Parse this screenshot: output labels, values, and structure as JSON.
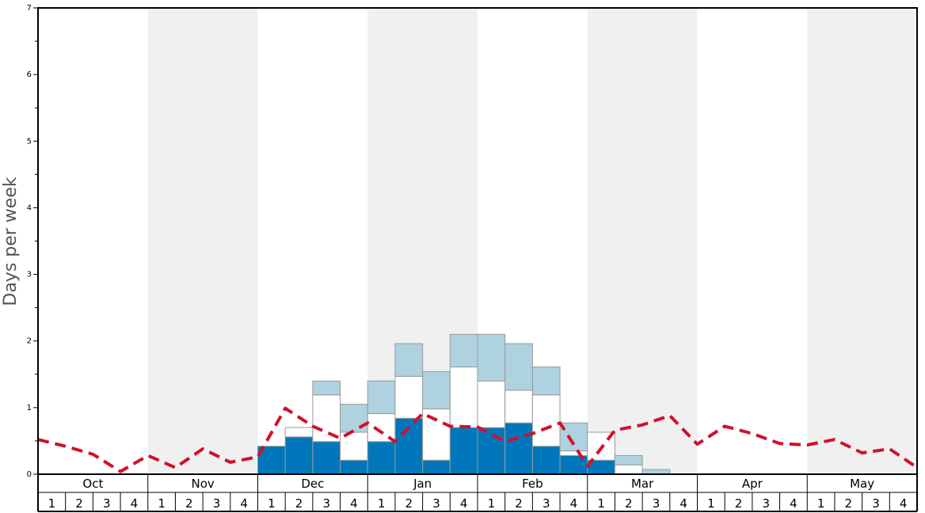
{
  "chart_data": {
    "type": "bar",
    "ylabel": "Days per week",
    "ylim": [
      0,
      7
    ],
    "yticks": [
      "0",
      "1",
      "2",
      "3",
      "4",
      "5",
      "6",
      "7"
    ],
    "months": [
      "Oct",
      "Nov",
      "Dec",
      "Jan",
      "Feb",
      "Mar",
      "Apr",
      "May"
    ],
    "weeks": [
      "1",
      "2",
      "3",
      "4"
    ],
    "month_band_colors": [
      "#ffffff",
      "#f0f0f0"
    ],
    "colors": {
      "bottom": "#0077bb",
      "middle": "#ffffff",
      "top": "#aed2df",
      "line": "#d0112b",
      "bar_stroke": "#999999"
    },
    "series": [
      {
        "key": "bottom",
        "values": [
          0,
          0,
          0,
          0,
          0,
          0,
          0,
          0,
          0.42,
          0.56,
          0.49,
          0.21,
          0.49,
          0.84,
          0.21,
          0.7,
          0.7,
          0.77,
          0.42,
          0.28,
          0.21,
          0,
          0,
          0,
          0,
          0,
          0,
          0,
          0,
          0,
          0,
          0
        ]
      },
      {
        "key": "middle",
        "values": [
          0,
          0,
          0,
          0,
          0,
          0,
          0,
          0,
          0,
          0.14,
          0.7,
          0.42,
          0.42,
          0.63,
          0.77,
          0.91,
          0.7,
          0.49,
          0.77,
          0.07,
          0.42,
          0.14,
          0,
          0,
          0,
          0,
          0,
          0,
          0,
          0,
          0,
          0
        ]
      },
      {
        "key": "top",
        "values": [
          0,
          0,
          0,
          0,
          0,
          0,
          0,
          0,
          0,
          0,
          0.21,
          0.42,
          0.49,
          0.49,
          0.56,
          0.49,
          0.7,
          0.7,
          0.42,
          0.42,
          0,
          0.14,
          0.07,
          0,
          0,
          0,
          0,
          0,
          0,
          0,
          0,
          0
        ]
      }
    ],
    "line_values": [
      0.52,
      0.42,
      0.3,
      0.04,
      0.28,
      0.1,
      0.38,
      0.18,
      0.26,
      0.99,
      0.72,
      0.54,
      0.77,
      0.49,
      0.91,
      0.72,
      0.71,
      0.49,
      0.61,
      0.77,
      0.12,
      0.66,
      0.74,
      0.88,
      0.45,
      0.72,
      0.61,
      0.46,
      0.44,
      0.52,
      0.32,
      0.38,
      0.1
    ]
  }
}
